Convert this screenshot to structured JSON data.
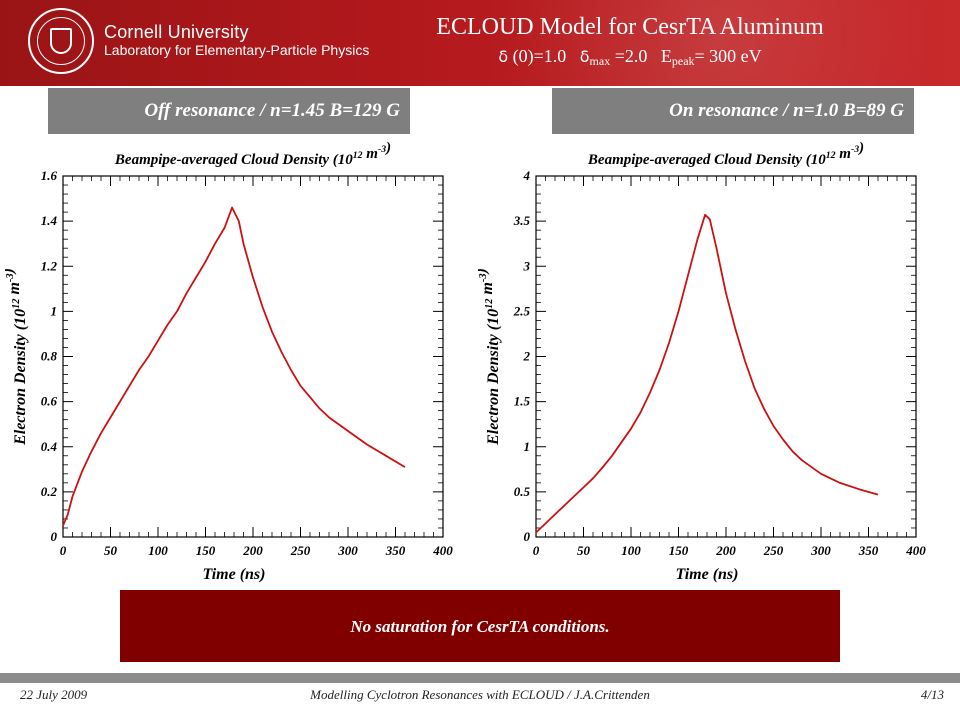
{
  "header": {
    "university": "Cornell University",
    "lab": "Laboratory for Elementary-Particle Physics",
    "title": "ECLOUD Model for CesrTA Aluminum",
    "delta_symbol": "δ",
    "sub1": "(0)=1.0",
    "sub2_index": "max",
    "sub2_value": "=2.0",
    "sub3_E": "E",
    "sub3_index": "peak",
    "sub3_value": "= 300 eV"
  },
  "panels": {
    "left_label": "Off resonance / n=1.45 B=129 G",
    "right_label": "On resonance / n=1.0 B=89 G"
  },
  "note": "No saturation for CesrTA conditions.",
  "footer": {
    "date": "22 July 2009",
    "center": "Modelling Cyclotron Resonances with ECLOUD / J.A.Crittenden",
    "page": "4/13"
  },
  "colors": {
    "header": "#b3191d",
    "line": "#cc1111",
    "note": "#800000",
    "label": "#7f7f7f"
  },
  "chart_data": [
    {
      "type": "line",
      "title": "Beampipe-averaged Cloud Density (10^12 m^-3)",
      "xlabel": "Time (ns)",
      "ylabel": "Electron Density (10^12 m^-3)",
      "xlim": [
        0,
        400
      ],
      "ylim": [
        0,
        1.6
      ],
      "xticks": [
        0,
        50,
        100,
        150,
        200,
        250,
        300,
        350,
        400
      ],
      "yticks": [
        0,
        0.2,
        0.4,
        0.6,
        0.8,
        1,
        1.2,
        1.4,
        1.6
      ],
      "ytick_labels": [
        "0",
        "0.2",
        "0.4",
        "0.6",
        "0.8",
        "1",
        "1.2",
        "1.4",
        "1.6"
      ],
      "series": [
        {
          "x": [
            0,
            5,
            10,
            20,
            30,
            40,
            50,
            60,
            70,
            80,
            90,
            100,
            110,
            120,
            130,
            140,
            150,
            160,
            170,
            178,
            185,
            190,
            200,
            210,
            220,
            230,
            240,
            250,
            260,
            270,
            280,
            300,
            320,
            340,
            360
          ],
          "y": [
            0.05,
            0.1,
            0.18,
            0.29,
            0.38,
            0.46,
            0.53,
            0.6,
            0.67,
            0.74,
            0.8,
            0.87,
            0.94,
            1.0,
            1.08,
            1.15,
            1.22,
            1.3,
            1.37,
            1.46,
            1.4,
            1.3,
            1.15,
            1.02,
            0.91,
            0.82,
            0.74,
            0.67,
            0.62,
            0.57,
            0.53,
            0.47,
            0.41,
            0.36,
            0.31
          ]
        }
      ]
    },
    {
      "type": "line",
      "title": "Beampipe-averaged Cloud Density (10^12 m^-3)",
      "xlabel": "Time (ns)",
      "ylabel": "Electron Density (10^12 m^-3)",
      "xlim": [
        0,
        400
      ],
      "ylim": [
        0,
        4
      ],
      "xticks": [
        0,
        50,
        100,
        150,
        200,
        250,
        300,
        350,
        400
      ],
      "yticks": [
        0,
        0.5,
        1,
        1.5,
        2,
        2.5,
        3,
        3.5,
        4
      ],
      "ytick_labels": [
        "0",
        "0.5",
        "1",
        "1.5",
        "2",
        "2.5",
        "3",
        "3.5",
        "4"
      ],
      "series": [
        {
          "x": [
            0,
            10,
            20,
            30,
            40,
            50,
            60,
            70,
            80,
            90,
            100,
            110,
            120,
            130,
            140,
            150,
            160,
            170,
            178,
            183,
            190,
            200,
            210,
            220,
            230,
            240,
            250,
            260,
            270,
            280,
            300,
            320,
            340,
            360
          ],
          "y": [
            0.05,
            0.15,
            0.25,
            0.35,
            0.45,
            0.55,
            0.65,
            0.77,
            0.9,
            1.05,
            1.2,
            1.38,
            1.6,
            1.85,
            2.15,
            2.5,
            2.9,
            3.3,
            3.57,
            3.52,
            3.2,
            2.7,
            2.3,
            1.95,
            1.65,
            1.42,
            1.23,
            1.08,
            0.95,
            0.85,
            0.7,
            0.6,
            0.53,
            0.47
          ]
        }
      ]
    }
  ]
}
